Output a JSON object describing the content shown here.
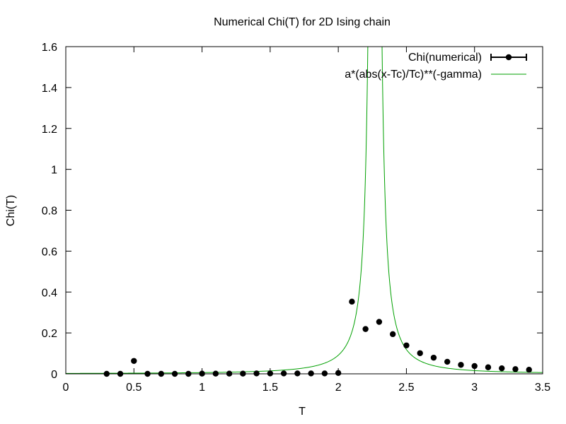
{
  "chart_data": {
    "type": "scatter",
    "title": "Numerical Chi(T) for 2D Ising chain",
    "xlabel": "T",
    "ylabel": "Chi(T)",
    "xlim": [
      0,
      3.5
    ],
    "ylim": [
      0,
      1.6
    ],
    "x_ticks": [
      "0",
      "0.5",
      "1",
      "1.5",
      "2",
      "2.5",
      "3",
      "3.5"
    ],
    "y_ticks": [
      "0",
      "0.2",
      "0.4",
      "0.6",
      "0.8",
      "1",
      "1.2",
      "1.4",
      "1.6"
    ],
    "grid": false,
    "legend_position": "top-right",
    "series": [
      {
        "name": "Chi(numerical)",
        "kind": "points-with-errorbars",
        "color": "#000000",
        "x": [
          0.3,
          0.4,
          0.5,
          0.6,
          0.7,
          0.8,
          0.9,
          1.0,
          1.1,
          1.2,
          1.3,
          1.4,
          1.5,
          1.6,
          1.7,
          1.8,
          1.9,
          2.0,
          2.1,
          2.2,
          2.3,
          2.4,
          2.5,
          2.6,
          2.7,
          2.8,
          2.9,
          3.0,
          3.1,
          3.2,
          3.3,
          3.4
        ],
        "y": [
          0.0,
          0.0,
          0.063,
          0.0,
          0.0,
          0.0,
          0.0,
          0.001,
          0.001,
          0.001,
          0.001,
          0.002,
          0.002,
          0.002,
          0.002,
          0.002,
          0.002,
          0.004,
          0.353,
          0.219,
          0.254,
          0.194,
          0.139,
          0.101,
          0.079,
          0.059,
          0.044,
          0.038,
          0.032,
          0.027,
          0.023,
          0.02
        ]
      },
      {
        "name": "a*(abs(x-Tc)/Tc)**(-gamma)",
        "kind": "line",
        "color": "#00a000",
        "Tc": 2.269,
        "gamma": 1.75,
        "a": 0.00218
      }
    ]
  }
}
